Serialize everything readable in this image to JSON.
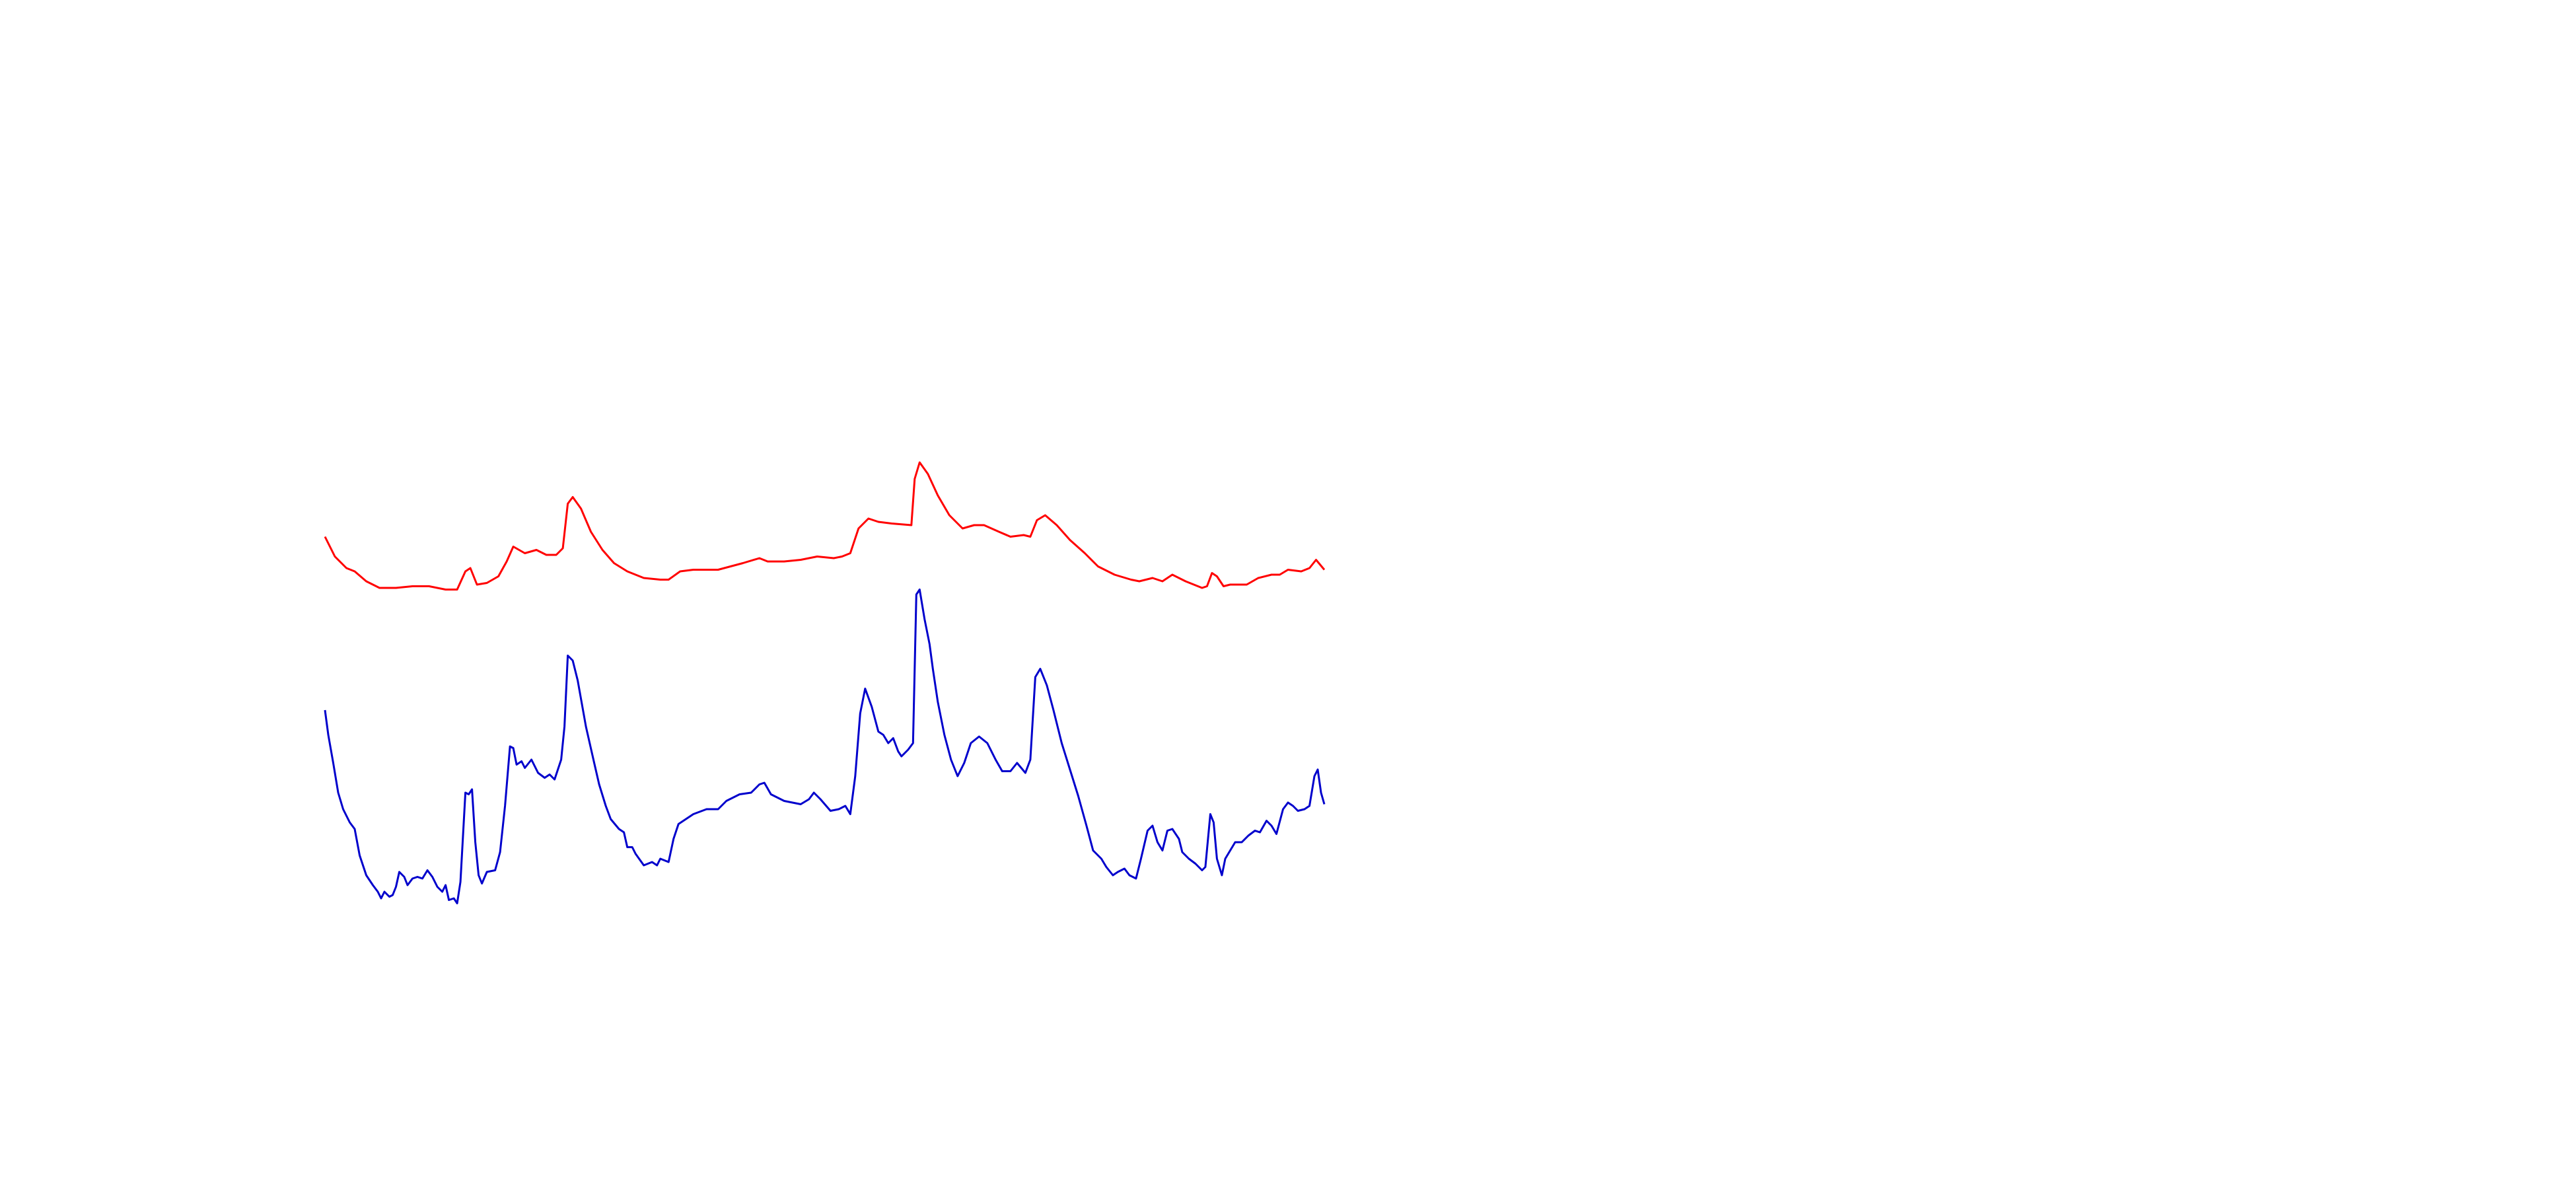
{
  "chart_data": {
    "type": "line",
    "xlim": [
      0,
      605
    ],
    "ylim": [
      0,
      300
    ],
    "series": [
      {
        "color": "#ff0000",
        "x": [
          0,
          6,
          13,
          18,
          25,
          33,
          43,
          53,
          63,
          73,
          80,
          85,
          88,
          92,
          98,
          105,
          110,
          114,
          121,
          128,
          134,
          140,
          144,
          147,
          150,
          155,
          161,
          168,
          175,
          183,
          193,
          203,
          208,
          215,
          223,
          238,
          253,
          263,
          268,
          278,
          288,
          298,
          308,
          313,
          318,
          323,
          329,
          335,
          343,
          355,
          357,
          360,
          365,
          371,
          378,
          386,
          393,
          399,
          408,
          415,
          423,
          427,
          431,
          436,
          443,
          451,
          460,
          468,
          478,
          488,
          493,
          501,
          507,
          513,
          521,
          531,
          534,
          537,
          540,
          544,
          548,
          558,
          565,
          573,
          578,
          583,
          591,
          596,
          600,
          605
        ],
        "values": [
          235,
          223,
          216,
          214,
          208,
          204,
          204,
          205,
          205,
          203,
          203,
          214,
          216,
          206,
          207,
          211,
          220,
          229,
          225,
          227,
          224,
          224,
          228,
          255,
          259,
          252,
          238,
          227,
          219,
          214,
          210,
          209,
          209,
          214,
          215,
          215,
          219,
          222,
          220,
          220,
          221,
          223,
          222,
          223,
          225,
          240,
          246,
          244,
          243,
          242,
          270,
          280,
          273,
          260,
          248,
          240,
          242,
          242,
          238,
          235,
          236,
          235,
          245,
          248,
          242,
          233,
          225,
          217,
          212,
          209,
          208,
          210,
          208,
          212,
          208,
          204,
          205,
          213,
          211,
          205,
          206,
          206,
          210,
          212,
          212,
          215,
          214,
          216,
          221,
          215
        ]
      },
      {
        "color": "#0000cc",
        "x": [
          0,
          2,
          5,
          8,
          11,
          15,
          18,
          21,
          25,
          29,
          32,
          34,
          36,
          39,
          41,
          43,
          45,
          48,
          50,
          53,
          56,
          59,
          62,
          65,
          68,
          71,
          73,
          75,
          78,
          80,
          82,
          85,
          87,
          89,
          91,
          93,
          95,
          98,
          103,
          106,
          109,
          112,
          114,
          116,
          119,
          121,
          125,
          129,
          133,
          136,
          139,
          143,
          145,
          147,
          150,
          153,
          158,
          163,
          166,
          170,
          173,
          178,
          181,
          183,
          186,
          188,
          193,
          198,
          201,
          203,
          208,
          211,
          214,
          217,
          223,
          231,
          238,
          243,
          251,
          258,
          263,
          266,
          270,
          278,
          288,
          293,
          296,
          300,
          306,
          311,
          315,
          318,
          321,
          324,
          327,
          331,
          335,
          338,
          341,
          344,
          347,
          349,
          353,
          356,
          358,
          360,
          363,
          366,
          368,
          371,
          375,
          379,
          383,
          387,
          391,
          396,
          401,
          406,
          410,
          415,
          419,
          424,
          427,
          430,
          433,
          437,
          441,
          446,
          451,
          456,
          461,
          465,
          470,
          473,
          477,
          480,
          484,
          487,
          491,
          494,
          498,
          501,
          504,
          507,
          510,
          513,
          517,
          519,
          523,
          527,
          531,
          533,
          536,
          538,
          540,
          543,
          545,
          548,
          551,
          555,
          559,
          563,
          566,
          570,
          573,
          576,
          580,
          583,
          586,
          589,
          593,
          596,
          599,
          601,
          603,
          605
        ],
        "values": [
          130,
          115,
          98,
          80,
          70,
          62,
          58,
          42,
          30,
          24,
          20,
          16,
          20,
          17,
          18,
          23,
          32,
          29,
          24,
          28,
          29,
          28,
          33,
          29,
          23,
          20,
          24,
          15,
          16,
          13,
          26,
          80,
          79,
          82,
          50,
          30,
          25,
          32,
          33,
          44,
          72,
          108,
          107,
          97,
          99,
          95,
          100,
          92,
          89,
          91,
          88,
          100,
          120,
          163,
          160,
          148,
          120,
          98,
          85,
          72,
          64,
          58,
          56,
          47,
          47,
          43,
          36,
          38,
          36,
          40,
          38,
          52,
          61,
          63,
          67,
          70,
          70,
          75,
          79,
          80,
          85,
          86,
          79,
          75,
          73,
          76,
          80,
          76,
          69,
          70,
          72,
          67,
          90,
          128,
          143,
          132,
          117,
          115,
          110,
          113,
          105,
          102,
          106,
          110,
          200,
          203,
          185,
          170,
          155,
          135,
          115,
          100,
          90,
          98,
          110,
          114,
          110,
          100,
          93,
          93,
          98,
          92,
          100,
          150,
          155,
          145,
          130,
          110,
          94,
          78,
          60,
          45,
          40,
          35,
          30,
          32,
          34,
          30,
          28,
          40,
          57,
          60,
          50,
          45,
          57,
          58,
          52,
          44,
          40,
          37,
          33,
          35,
          67,
          62,
          40,
          30,
          40,
          45,
          50,
          50,
          54,
          57,
          56,
          63,
          60,
          55,
          70,
          74,
          72,
          69,
          70,
          72,
          90,
          94,
          80,
          73
        ]
      }
    ]
  }
}
